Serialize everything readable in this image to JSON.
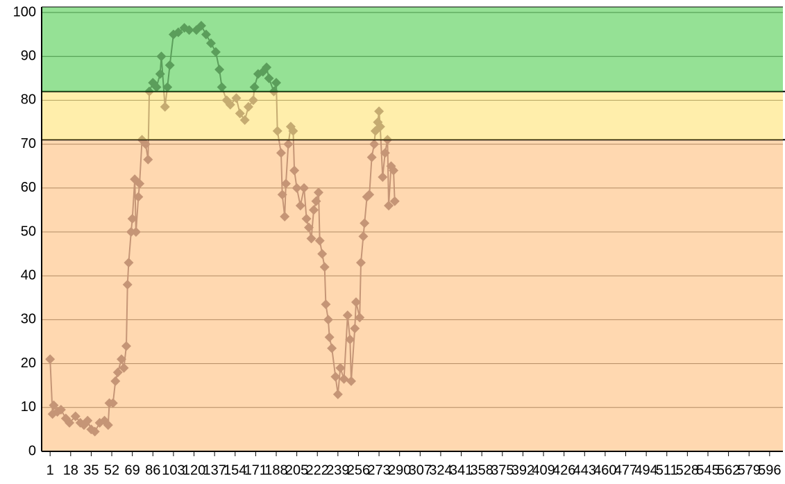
{
  "chart_data": {
    "type": "line",
    "marker": "diamond",
    "color": "#7e6a7e",
    "x": [
      1,
      3,
      4,
      7,
      10,
      14,
      17,
      22,
      26,
      29,
      32,
      35,
      38,
      42,
      46,
      49,
      50,
      53,
      55,
      57,
      60,
      62,
      64,
      65,
      66,
      68,
      69,
      71,
      72,
      74,
      75,
      77,
      80,
      82,
      83,
      86,
      89,
      92,
      93,
      96,
      98,
      100,
      103,
      107,
      112,
      116,
      122,
      126,
      130,
      134,
      138,
      141,
      143,
      147,
      150,
      155,
      158,
      162,
      165,
      169,
      170,
      173,
      177,
      180,
      182,
      186,
      188,
      189,
      192,
      193,
      195,
      196,
      198,
      200,
      202,
      203,
      205,
      208,
      211,
      213,
      215,
      217,
      219,
      221,
      223,
      224,
      226,
      228,
      229,
      231,
      232,
      234,
      237,
      239,
      241,
      244,
      247,
      249,
      250,
      253,
      254,
      257,
      258,
      260,
      261,
      263,
      265,
      267,
      269,
      270,
      272,
      273,
      274,
      276,
      278,
      280,
      281,
      283,
      285,
      286
    ],
    "values": [
      21,
      8.5,
      10.5,
      9,
      9.5,
      7.5,
      6.5,
      8,
      6.5,
      6,
      7,
      5,
      4.5,
      6.5,
      7,
      6,
      11,
      11,
      16,
      18,
      21,
      19,
      24,
      38,
      43,
      50,
      53,
      62,
      50,
      58,
      61,
      71,
      70,
      66.5,
      82,
      84,
      83,
      86,
      90,
      78.5,
      83,
      88,
      95,
      95.5,
      96.5,
      96,
      96,
      97,
      95,
      93,
      91,
      87,
      83,
      80,
      79,
      80.5,
      77,
      75.5,
      78.5,
      80,
      83,
      86,
      86.5,
      87.5,
      85,
      82,
      84,
      73,
      68,
      58.5,
      53.5,
      61,
      70,
      74,
      73,
      64,
      60,
      56,
      60,
      53,
      51,
      48.5,
      55,
      57,
      59,
      48,
      45,
      42,
      33.5,
      30,
      26,
      23.5,
      17,
      13,
      19,
      16.5,
      31,
      25.5,
      16,
      28,
      34,
      30.5,
      43,
      49,
      52,
      58,
      58.5,
      67,
      70,
      73,
      75,
      77.5,
      74,
      62.5,
      68,
      71,
      56,
      65,
      64,
      57
    ],
    "xlim": [
      -6,
      607
    ],
    "xticks": [
      1,
      18,
      35,
      52,
      69,
      86,
      103,
      120,
      137,
      154,
      171,
      188,
      205,
      222,
      239,
      256,
      273,
      290,
      307,
      324,
      341,
      358,
      375,
      392,
      409,
      426,
      443,
      460,
      477,
      494,
      511,
      528,
      545,
      562,
      579,
      596
    ],
    "ylim": [
      0,
      100
    ],
    "yticks": [
      0,
      10,
      20,
      30,
      40,
      50,
      60,
      70,
      80,
      90,
      100
    ],
    "grid": true,
    "bands": [
      {
        "from": 0,
        "to": 71,
        "color": "#ffb870"
      },
      {
        "from": 71,
        "to": 82,
        "color": "#ffe066"
      },
      {
        "from": 82,
        "to": 100,
        "color": "#3ec83e"
      }
    ]
  }
}
